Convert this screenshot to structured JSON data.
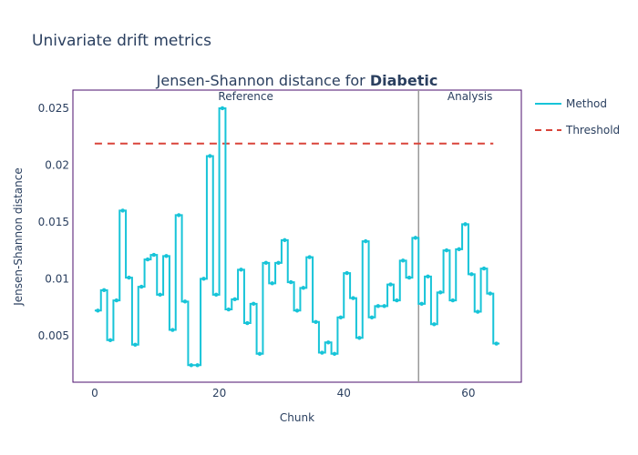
{
  "figure_title": "Univariate drift metrics",
  "chart_data": {
    "type": "line",
    "title_prefix": "Jensen-Shannon distance for ",
    "title_bold": "Diabetic",
    "xlabel": "Chunk",
    "ylabel": "Jensen-Shannon distance",
    "xlim": [
      -3.5,
      68.5
    ],
    "ylim": [
      0.0009,
      0.0266
    ],
    "xticks": [
      0,
      20,
      40,
      60
    ],
    "yticks": [
      0.005,
      0.01,
      0.015,
      0.02,
      0.025
    ],
    "ytick_labels": [
      "0.005",
      "0.01",
      "0.015",
      "0.02",
      "0.025"
    ],
    "period_split": 52,
    "period_labels": {
      "reference": "Reference",
      "analysis": "Analysis"
    },
    "threshold": {
      "name": "Threshold",
      "value": 0.0219,
      "x_range": [
        0,
        64
      ],
      "color": "#d9443a"
    },
    "series": [
      {
        "name": "Method",
        "color": "#17c4d8",
        "x": [
          0,
          1,
          2,
          3,
          4,
          5,
          6,
          7,
          8,
          9,
          10,
          11,
          12,
          13,
          14,
          15,
          16,
          17,
          18,
          19,
          20,
          21,
          22,
          23,
          24,
          25,
          26,
          27,
          28,
          29,
          30,
          31,
          32,
          33,
          34,
          35,
          36,
          37,
          38,
          39,
          40,
          41,
          42,
          43,
          44,
          45,
          46,
          47,
          48,
          49,
          50,
          51,
          52,
          53,
          54,
          55,
          56,
          57,
          58,
          59,
          60,
          61,
          62,
          63,
          64
        ],
        "values": [
          0.0072,
          0.009,
          0.0046,
          0.0081,
          0.016,
          0.0101,
          0.0042,
          0.0093,
          0.0117,
          0.0121,
          0.0086,
          0.012,
          0.0055,
          0.0156,
          0.008,
          0.0024,
          0.0024,
          0.01,
          0.0208,
          0.0086,
          0.025,
          0.0073,
          0.0082,
          0.0108,
          0.0061,
          0.0078,
          0.0034,
          0.0114,
          0.0096,
          0.0114,
          0.0134,
          0.0097,
          0.0072,
          0.0092,
          0.0119,
          0.0062,
          0.0035,
          0.0044,
          0.0034,
          0.0066,
          0.0105,
          0.0083,
          0.0048,
          0.0133,
          0.0066,
          0.0076,
          0.0076,
          0.0095,
          0.0081,
          0.0116,
          0.0101,
          0.0136,
          0.0078,
          0.0102,
          0.006,
          0.0088,
          0.0125,
          0.0081,
          0.0126,
          0.0148,
          0.0104,
          0.0071,
          0.0109,
          0.0087,
          0.0043
        ]
      }
    ],
    "legend_position": "top-right",
    "grid": false
  }
}
